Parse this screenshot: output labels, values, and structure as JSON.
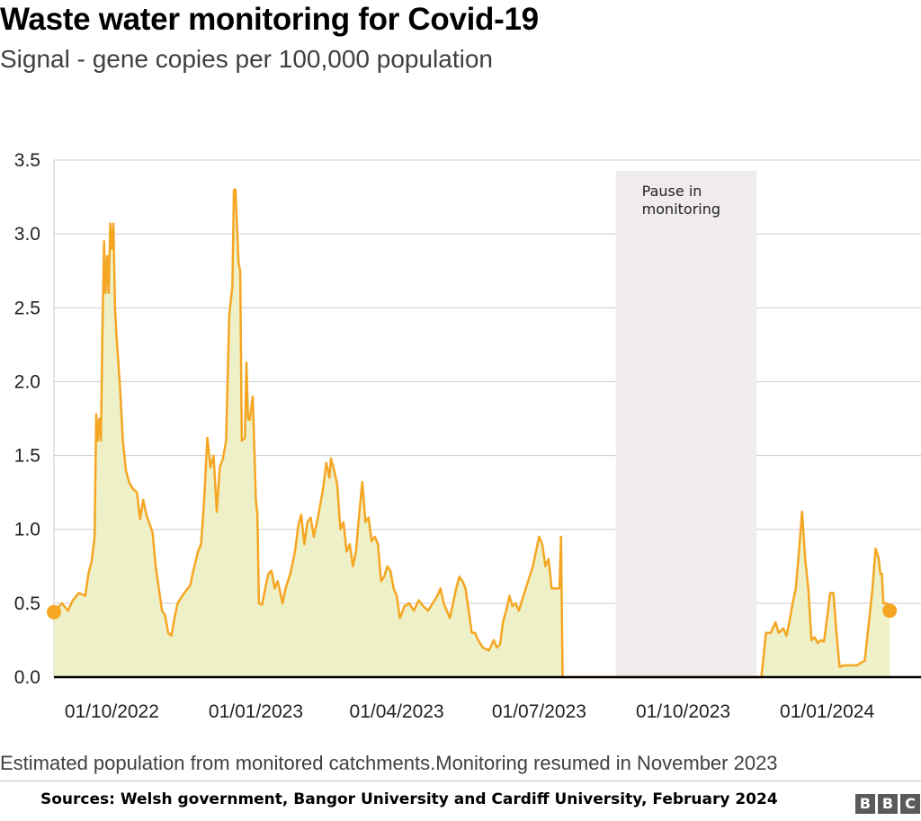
{
  "title": "Waste water monitoring for Covid-19",
  "subtitle": "Signal - gene copies per 100,000 population",
  "note": "Estimated population from monitored catchments.Monitoring resumed in November 2023",
  "source": "Sources: Welsh government, Bangor University and Cardiff University, February 2024",
  "logo": [
    "B",
    "B",
    "C"
  ],
  "chart_data": {
    "type": "area",
    "x_axis": {
      "format": "DD/MM/YYYY",
      "range": [
        "2022-08-25",
        "2024-03-01"
      ],
      "ticks": [
        {
          "date": "2022-10-01",
          "label": "01/10/2022"
        },
        {
          "date": "2023-01-01",
          "label": "01/01/2023"
        },
        {
          "date": "2023-04-01",
          "label": "01/04/2023"
        },
        {
          "date": "2023-07-01",
          "label": "01/07/2023"
        },
        {
          "date": "2023-10-01",
          "label": "01/10/2023"
        },
        {
          "date": "2024-01-01",
          "label": "01/01/2024"
        }
      ]
    },
    "y_axis": {
      "ylim": [
        0,
        3.5
      ],
      "ticks": [
        {
          "value": 0,
          "label": "0.0"
        },
        {
          "value": 0.5,
          "label": "0.5"
        },
        {
          "value": 1.0,
          "label": "1.0"
        },
        {
          "value": 1.5,
          "label": "1.5"
        },
        {
          "value": 2.0,
          "label": "2.0"
        },
        {
          "value": 2.5,
          "label": "2.5"
        },
        {
          "value": 3.0,
          "label": "3.0"
        },
        {
          "value": 3.5,
          "label": "3.5"
        }
      ]
    },
    "grid": "horizontal",
    "colors": {
      "line": "#f5a623",
      "area": "#eef0c8",
      "pause": "#efeceb",
      "axis": "#000000",
      "grid": "#cccccc"
    },
    "annotation": {
      "label_lines": [
        "Pause in",
        "monitoring"
      ],
      "start": "2023-08-19",
      "end": "2023-11-17"
    },
    "series": [
      {
        "values": [
          [
            "2022-08-25",
            0.44
          ],
          [
            "2022-08-30",
            0.5
          ],
          [
            "2022-09-03",
            0.45
          ],
          [
            "2022-09-06",
            0.52
          ],
          [
            "2022-09-10",
            0.57
          ],
          [
            "2022-09-14",
            0.55
          ],
          [
            "2022-09-16",
            0.7
          ],
          [
            "2022-09-18",
            0.78
          ],
          [
            "2022-09-20",
            0.95
          ],
          [
            "2022-09-21",
            1.78
          ],
          [
            "2022-09-22",
            1.6
          ],
          [
            "2022-09-23",
            1.75
          ],
          [
            "2022-09-24",
            1.6
          ],
          [
            "2022-09-25",
            2.35
          ],
          [
            "2022-09-26",
            2.95
          ],
          [
            "2022-09-27",
            2.6
          ],
          [
            "2022-09-28",
            2.85
          ],
          [
            "2022-09-29",
            2.6
          ],
          [
            "2022-09-30",
            3.07
          ],
          [
            "2022-10-01",
            2.9
          ],
          [
            "2022-10-02",
            3.07
          ],
          [
            "2022-10-03",
            2.5
          ],
          [
            "2022-10-04",
            2.3
          ],
          [
            "2022-10-06",
            2.0
          ],
          [
            "2022-10-08",
            1.6
          ],
          [
            "2022-10-10",
            1.4
          ],
          [
            "2022-10-12",
            1.32
          ],
          [
            "2022-10-14",
            1.28
          ],
          [
            "2022-10-17",
            1.25
          ],
          [
            "2022-10-19",
            1.07
          ],
          [
            "2022-10-21",
            1.2
          ],
          [
            "2022-10-23",
            1.1
          ],
          [
            "2022-10-27",
            0.98
          ],
          [
            "2022-10-29",
            0.75
          ],
          [
            "2022-10-31",
            0.6
          ],
          [
            "2022-11-02",
            0.45
          ],
          [
            "2022-11-04",
            0.42
          ],
          [
            "2022-11-06",
            0.3
          ],
          [
            "2022-11-08",
            0.28
          ],
          [
            "2022-11-10",
            0.4
          ],
          [
            "2022-11-12",
            0.5
          ],
          [
            "2022-11-15",
            0.55
          ],
          [
            "2022-11-17",
            0.58
          ],
          [
            "2022-11-20",
            0.62
          ],
          [
            "2022-11-22",
            0.72
          ],
          [
            "2022-11-25",
            0.85
          ],
          [
            "2022-11-27",
            0.9
          ],
          [
            "2022-11-29",
            1.2
          ],
          [
            "2022-12-01",
            1.62
          ],
          [
            "2022-12-03",
            1.42
          ],
          [
            "2022-12-05",
            1.5
          ],
          [
            "2022-12-07",
            1.12
          ],
          [
            "2022-12-09",
            1.42
          ],
          [
            "2022-12-11",
            1.48
          ],
          [
            "2022-12-13",
            1.6
          ],
          [
            "2022-12-15",
            2.45
          ],
          [
            "2022-12-17",
            2.65
          ],
          [
            "2022-12-18",
            3.3
          ],
          [
            "2022-12-19",
            3.3
          ],
          [
            "2022-12-21",
            2.8
          ],
          [
            "2022-12-22",
            2.75
          ],
          [
            "2022-12-23",
            1.6
          ],
          [
            "2022-12-25",
            1.62
          ],
          [
            "2022-12-26",
            2.13
          ],
          [
            "2022-12-27",
            1.75
          ],
          [
            "2022-12-28",
            1.74
          ],
          [
            "2022-12-30",
            1.9
          ],
          [
            "2023-01-01",
            1.2
          ],
          [
            "2023-01-02",
            1.1
          ],
          [
            "2023-01-03",
            0.5
          ],
          [
            "2023-01-05",
            0.49
          ],
          [
            "2023-01-07",
            0.6
          ],
          [
            "2023-01-09",
            0.7
          ],
          [
            "2023-01-11",
            0.72
          ],
          [
            "2023-01-13",
            0.6
          ],
          [
            "2023-01-15",
            0.65
          ],
          [
            "2023-01-18",
            0.5
          ],
          [
            "2023-01-20",
            0.6
          ],
          [
            "2023-01-23",
            0.7
          ],
          [
            "2023-01-26",
            0.85
          ],
          [
            "2023-01-28",
            1.02
          ],
          [
            "2023-01-30",
            1.1
          ],
          [
            "2023-02-01",
            0.9
          ],
          [
            "2023-02-03",
            1.05
          ],
          [
            "2023-02-05",
            1.08
          ],
          [
            "2023-02-07",
            0.95
          ],
          [
            "2023-02-10",
            1.1
          ],
          [
            "2023-02-13",
            1.28
          ],
          [
            "2023-02-15",
            1.45
          ],
          [
            "2023-02-17",
            1.35
          ],
          [
            "2023-02-18",
            1.48
          ],
          [
            "2023-02-20",
            1.4
          ],
          [
            "2023-02-22",
            1.3
          ],
          [
            "2023-02-24",
            1.0
          ],
          [
            "2023-02-26",
            1.05
          ],
          [
            "2023-02-28",
            0.85
          ],
          [
            "2023-03-02",
            0.9
          ],
          [
            "2023-03-04",
            0.75
          ],
          [
            "2023-03-06",
            0.85
          ],
          [
            "2023-03-08",
            1.1
          ],
          [
            "2023-03-10",
            1.32
          ],
          [
            "2023-03-12",
            1.05
          ],
          [
            "2023-03-14",
            1.08
          ],
          [
            "2023-03-16",
            0.92
          ],
          [
            "2023-03-18",
            0.95
          ],
          [
            "2023-03-20",
            0.9
          ],
          [
            "2023-03-22",
            0.65
          ],
          [
            "2023-03-24",
            0.68
          ],
          [
            "2023-03-26",
            0.75
          ],
          [
            "2023-03-28",
            0.72
          ],
          [
            "2023-03-30",
            0.6
          ],
          [
            "2023-04-01",
            0.55
          ],
          [
            "2023-04-03",
            0.4
          ],
          [
            "2023-04-06",
            0.48
          ],
          [
            "2023-04-09",
            0.5
          ],
          [
            "2023-04-12",
            0.45
          ],
          [
            "2023-04-15",
            0.52
          ],
          [
            "2023-04-18",
            0.48
          ],
          [
            "2023-04-21",
            0.45
          ],
          [
            "2023-04-24",
            0.5
          ],
          [
            "2023-04-27",
            0.55
          ],
          [
            "2023-04-29",
            0.6
          ],
          [
            "2023-05-01",
            0.5
          ],
          [
            "2023-05-03",
            0.45
          ],
          [
            "2023-05-05",
            0.4
          ],
          [
            "2023-05-07",
            0.5
          ],
          [
            "2023-05-09",
            0.6
          ],
          [
            "2023-05-11",
            0.68
          ],
          [
            "2023-05-13",
            0.65
          ],
          [
            "2023-05-15",
            0.6
          ],
          [
            "2023-05-17",
            0.45
          ],
          [
            "2023-05-19",
            0.3
          ],
          [
            "2023-05-21",
            0.3
          ],
          [
            "2023-05-23",
            0.25
          ],
          [
            "2023-05-26",
            0.2
          ],
          [
            "2023-05-30",
            0.18
          ],
          [
            "2023-06-02",
            0.25
          ],
          [
            "2023-06-04",
            0.2
          ],
          [
            "2023-06-06",
            0.22
          ],
          [
            "2023-06-08",
            0.38
          ],
          [
            "2023-06-10",
            0.45
          ],
          [
            "2023-06-12",
            0.55
          ],
          [
            "2023-06-14",
            0.48
          ],
          [
            "2023-06-16",
            0.5
          ],
          [
            "2023-06-18",
            0.45
          ],
          [
            "2023-06-21",
            0.55
          ],
          [
            "2023-06-24",
            0.65
          ],
          [
            "2023-06-27",
            0.75
          ],
          [
            "2023-06-29",
            0.85
          ],
          [
            "2023-07-01",
            0.95
          ],
          [
            "2023-07-03",
            0.9
          ],
          [
            "2023-07-05",
            0.75
          ],
          [
            "2023-07-07",
            0.8
          ],
          [
            "2023-07-09",
            0.6
          ],
          [
            "2023-07-12",
            0.6
          ],
          [
            "2023-07-14",
            0.6
          ],
          [
            "2023-07-15",
            0.95
          ],
          [
            "2023-07-16",
            0.0
          ],
          [
            "2023-11-20",
            0.0
          ],
          [
            "2023-11-22",
            0.2
          ],
          [
            "2023-11-23",
            0.3
          ],
          [
            "2023-11-26",
            0.3
          ],
          [
            "2023-11-29",
            0.37
          ],
          [
            "2023-12-01",
            0.3
          ],
          [
            "2023-12-04",
            0.33
          ],
          [
            "2023-12-06",
            0.28
          ],
          [
            "2023-12-08",
            0.38
          ],
          [
            "2023-12-10",
            0.5
          ],
          [
            "2023-12-12",
            0.6
          ],
          [
            "2023-12-14",
            0.85
          ],
          [
            "2023-12-16",
            1.12
          ],
          [
            "2023-12-18",
            0.8
          ],
          [
            "2023-12-20",
            0.6
          ],
          [
            "2023-12-22",
            0.25
          ],
          [
            "2023-12-24",
            0.27
          ],
          [
            "2023-12-26",
            0.23
          ],
          [
            "2023-12-28",
            0.25
          ],
          [
            "2023-12-30",
            0.24
          ],
          [
            "2024-01-01",
            0.4
          ],
          [
            "2024-01-03",
            0.57
          ],
          [
            "2024-01-05",
            0.57
          ],
          [
            "2024-01-07",
            0.3
          ],
          [
            "2024-01-09",
            0.07
          ],
          [
            "2024-01-12",
            0.08
          ],
          [
            "2024-01-16",
            0.08
          ],
          [
            "2024-01-20",
            0.08
          ],
          [
            "2024-01-23",
            0.1
          ],
          [
            "2024-01-25",
            0.11
          ],
          [
            "2024-01-28",
            0.4
          ],
          [
            "2024-01-30",
            0.6
          ],
          [
            "2024-02-01",
            0.87
          ],
          [
            "2024-02-03",
            0.8
          ],
          [
            "2024-02-04",
            0.7
          ],
          [
            "2024-02-05",
            0.7
          ],
          [
            "2024-02-06",
            0.5
          ],
          [
            "2024-02-08",
            0.5
          ],
          [
            "2024-02-10",
            0.45
          ]
        ]
      }
    ]
  }
}
